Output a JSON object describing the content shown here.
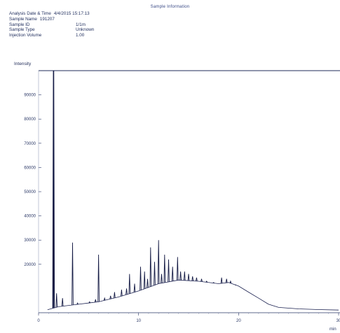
{
  "header": {
    "title": "Sample Information",
    "fields": [
      {
        "label": "Analysis Date & Time",
        "value": "4/4/2015 15:17:13"
      },
      {
        "label": "Sample Name",
        "value": "191207"
      },
      {
        "label": "Sample ID",
        "value": "1/1m"
      },
      {
        "label": "Sample Type",
        "value": "Unknown"
      },
      {
        "label": "Injection Volume",
        "value": "1.00"
      }
    ]
  },
  "chart_data": {
    "type": "line",
    "ylabel": "Intensity",
    "xlabel": "min",
    "xlim": [
      0,
      30
    ],
    "ylim": [
      0,
      100000
    ],
    "xticks": [
      "0",
      "10",
      "20",
      "30"
    ],
    "yticks": [
      "20000",
      "30000",
      "40000",
      "50000",
      "60000",
      "70000",
      "80000",
      "90000"
    ],
    "ytick_values": [
      20000,
      30000,
      40000,
      50000,
      60000,
      70000,
      80000,
      90000
    ],
    "baseline": [
      [
        0.9,
        1200
      ],
      [
        2,
        2500
      ],
      [
        4,
        3500
      ],
      [
        6,
        4500
      ],
      [
        8,
        6500
      ],
      [
        10,
        9000
      ],
      [
        12,
        12000
      ],
      [
        14,
        13500
      ],
      [
        16,
        13000
      ],
      [
        18,
        12000
      ],
      [
        19,
        12500
      ],
      [
        20,
        11000
      ],
      [
        21,
        8500
      ],
      [
        22,
        6000
      ],
      [
        23,
        3500
      ],
      [
        24,
        2200
      ],
      [
        26,
        1600
      ],
      [
        28,
        1300
      ],
      [
        30,
        1100
      ]
    ],
    "peaks": [
      [
        1.5,
        100000
      ],
      [
        1.8,
        8000
      ],
      [
        2.4,
        6000
      ],
      [
        3.4,
        29000
      ],
      [
        3.9,
        4000
      ],
      [
        5.1,
        4500
      ],
      [
        5.7,
        5500
      ],
      [
        6.0,
        24000
      ],
      [
        6.6,
        6000
      ],
      [
        7.2,
        7000
      ],
      [
        7.6,
        8500
      ],
      [
        8.3,
        9500
      ],
      [
        8.8,
        10000
      ],
      [
        9.1,
        16000
      ],
      [
        9.6,
        12000
      ],
      [
        10.2,
        19000
      ],
      [
        10.6,
        17000
      ],
      [
        10.9,
        14000
      ],
      [
        11.2,
        27000
      ],
      [
        11.6,
        21000
      ],
      [
        12.0,
        30000
      ],
      [
        12.3,
        16000
      ],
      [
        12.6,
        24000
      ],
      [
        13.0,
        22000
      ],
      [
        13.4,
        19000
      ],
      [
        13.9,
        23000
      ],
      [
        14.2,
        17000
      ],
      [
        14.6,
        17000
      ],
      [
        15.0,
        16000
      ],
      [
        15.4,
        15000
      ],
      [
        15.8,
        14500
      ],
      [
        16.3,
        14000
      ],
      [
        16.8,
        13000
      ],
      [
        17.5,
        12500
      ],
      [
        18.3,
        14500
      ],
      [
        18.8,
        14000
      ],
      [
        19.2,
        13000
      ],
      [
        19.7,
        11500
      ]
    ]
  }
}
